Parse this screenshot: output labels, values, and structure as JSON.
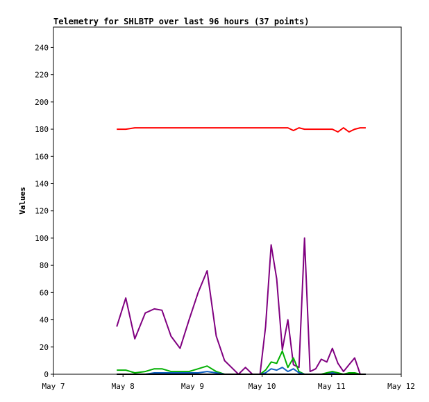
{
  "chart_data": {
    "type": "line",
    "title": "Telemetry for SHLBTP over last 96 hours (37 points)",
    "xlabel": "",
    "ylabel": "Values",
    "xlim": [
      0,
      5
    ],
    "ylim": [
      0,
      255
    ],
    "x_ticks": [
      {
        "value": 0,
        "label": "May 7"
      },
      {
        "value": 1,
        "label": "May 8"
      },
      {
        "value": 2,
        "label": "May 9"
      },
      {
        "value": 3,
        "label": "May 10"
      },
      {
        "value": 4,
        "label": "May 11"
      },
      {
        "value": 5,
        "label": "May 12"
      }
    ],
    "y_ticks": [
      0,
      20,
      40,
      60,
      80,
      100,
      120,
      140,
      160,
      180,
      200,
      220,
      240
    ],
    "grid": false,
    "legend": "none",
    "x": [
      0.91,
      1.04,
      1.17,
      1.32,
      1.45,
      1.56,
      1.69,
      1.82,
      1.95,
      2.08,
      2.21,
      2.34,
      2.46,
      2.56,
      2.66,
      2.76,
      2.86,
      2.97,
      3.05,
      3.13,
      3.21,
      3.29,
      3.37,
      3.45,
      3.53,
      3.61,
      3.69,
      3.77,
      3.85,
      3.93,
      4.01,
      4.09,
      4.17,
      4.25,
      4.33,
      4.41,
      4.49
    ],
    "series": [
      {
        "color": "#ff0000",
        "values": [
          180,
          180,
          181,
          181,
          181,
          181,
          181,
          181,
          181,
          181,
          181,
          181,
          181,
          181,
          181,
          181,
          181,
          181,
          181,
          181,
          181,
          181,
          181,
          179,
          181,
          180,
          180,
          180,
          180,
          180,
          180,
          178,
          181,
          178,
          180,
          181,
          181
        ]
      },
      {
        "color": "#800080",
        "values": [
          35,
          56,
          26,
          45,
          48,
          47,
          28,
          19,
          40,
          60,
          76,
          28,
          10,
          5,
          0,
          5,
          0,
          0,
          35,
          95,
          70,
          18,
          40,
          7,
          5,
          100,
          2,
          4,
          11,
          9,
          19,
          8,
          2,
          7,
          12,
          0,
          0
        ]
      },
      {
        "color": "#00b000",
        "values": [
          3,
          3,
          1,
          2,
          4,
          4,
          2,
          2,
          2,
          4,
          6,
          2,
          0,
          0,
          0,
          0,
          0,
          0,
          3,
          9,
          8,
          17,
          5,
          12,
          2,
          0,
          0,
          0,
          0,
          1,
          2,
          1,
          0,
          1,
          1,
          0,
          0
        ]
      },
      {
        "color": "#1060c0",
        "values": [
          0,
          0,
          0,
          0,
          1,
          1,
          1,
          1,
          1,
          1,
          2,
          1,
          0,
          0,
          0,
          0,
          0,
          0,
          1,
          4,
          3,
          5,
          2,
          4,
          1,
          0,
          0,
          0,
          0,
          0,
          1,
          0,
          0,
          0,
          0,
          0,
          0
        ]
      },
      {
        "color": "#000000",
        "values": [
          0,
          0,
          0,
          0,
          0,
          0,
          0,
          0,
          0,
          0,
          0,
          0,
          0,
          0,
          0,
          0,
          0,
          0,
          0,
          0,
          0,
          0,
          0,
          0,
          0,
          0,
          0,
          0,
          0,
          0,
          0,
          0,
          0,
          0,
          0,
          0,
          0
        ]
      }
    ]
  }
}
